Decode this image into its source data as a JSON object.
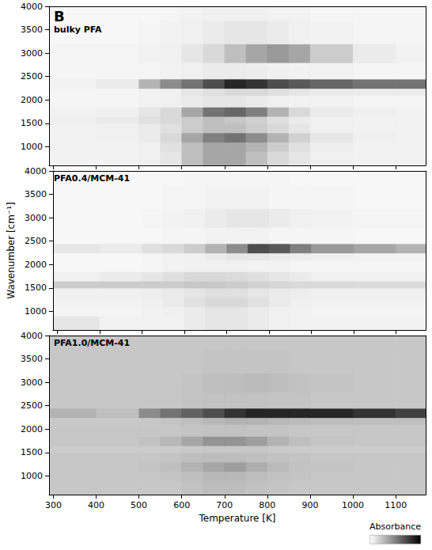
{
  "chart_data": {
    "type": "heatmap",
    "letter": "B",
    "xlabel": "Temperature [K]",
    "ylabel": "Wavenumber [cm⁻¹]",
    "xlim": [
      290,
      1170
    ],
    "xticks": [
      300,
      400,
      500,
      600,
      700,
      800,
      900,
      1000,
      1100
    ],
    "ylim": [
      600,
      4000
    ],
    "yticks": [
      1000,
      1500,
      2000,
      2500,
      3000,
      3500,
      4000
    ],
    "x_bins": [
      290,
      400,
      500,
      550,
      600,
      650,
      700,
      750,
      800,
      850,
      900,
      1000,
      1100,
      1170
    ],
    "y_bins": [
      600,
      900,
      1100,
      1300,
      1500,
      1650,
      1850,
      2100,
      2250,
      2450,
      2800,
      3200,
      3700,
      4000
    ],
    "colorbar": {
      "label": "Absorbance",
      "range": [
        0,
        1
      ],
      "colors": [
        "#ffffff",
        "#000000"
      ]
    },
    "panels": [
      {
        "title": "bulky PFA",
        "values": [
          [
            0.05,
            0.05,
            0.06,
            0.1,
            0.25,
            0.35,
            0.35,
            0.25,
            0.15,
            0.1,
            0.06,
            0.05,
            0.05
          ],
          [
            0.05,
            0.05,
            0.06,
            0.12,
            0.25,
            0.35,
            0.35,
            0.3,
            0.2,
            0.12,
            0.07,
            0.05,
            0.05
          ],
          [
            0.05,
            0.06,
            0.08,
            0.15,
            0.35,
            0.5,
            0.55,
            0.45,
            0.3,
            0.18,
            0.1,
            0.06,
            0.05
          ],
          [
            0.05,
            0.06,
            0.08,
            0.12,
            0.2,
            0.25,
            0.25,
            0.2,
            0.15,
            0.1,
            0.06,
            0.05,
            0.05
          ],
          [
            0.06,
            0.08,
            0.12,
            0.15,
            0.2,
            0.25,
            0.22,
            0.18,
            0.12,
            0.08,
            0.06,
            0.05,
            0.05
          ],
          [
            0.05,
            0.06,
            0.1,
            0.15,
            0.35,
            0.55,
            0.6,
            0.5,
            0.3,
            0.15,
            0.08,
            0.06,
            0.05
          ],
          [
            0.04,
            0.04,
            0.05,
            0.06,
            0.08,
            0.1,
            0.1,
            0.08,
            0.06,
            0.05,
            0.05,
            0.04,
            0.04
          ],
          [
            0.04,
            0.04,
            0.05,
            0.06,
            0.1,
            0.12,
            0.15,
            0.15,
            0.12,
            0.1,
            0.08,
            0.08,
            0.08
          ],
          [
            0.05,
            0.08,
            0.3,
            0.45,
            0.55,
            0.7,
            0.85,
            0.8,
            0.7,
            0.65,
            0.6,
            0.55,
            0.55
          ],
          [
            0.04,
            0.04,
            0.04,
            0.05,
            0.06,
            0.08,
            0.08,
            0.07,
            0.06,
            0.05,
            0.05,
            0.04,
            0.04
          ],
          [
            0.04,
            0.04,
            0.05,
            0.06,
            0.1,
            0.15,
            0.25,
            0.35,
            0.4,
            0.35,
            0.2,
            0.08,
            0.05
          ],
          [
            0.03,
            0.03,
            0.04,
            0.05,
            0.06,
            0.08,
            0.1,
            0.1,
            0.08,
            0.06,
            0.05,
            0.04,
            0.04
          ],
          [
            0.03,
            0.03,
            0.03,
            0.04,
            0.05,
            0.06,
            0.06,
            0.06,
            0.05,
            0.05,
            0.04,
            0.04,
            0.04
          ]
        ]
      },
      {
        "title": "PFA0.4/MCM-41",
        "values": [
          [
            0.1,
            0.05,
            0.05,
            0.05,
            0.08,
            0.1,
            0.1,
            0.08,
            0.06,
            0.05,
            0.05,
            0.05,
            0.05
          ],
          [
            0.04,
            0.04,
            0.05,
            0.06,
            0.08,
            0.1,
            0.1,
            0.08,
            0.06,
            0.05,
            0.04,
            0.04,
            0.04
          ],
          [
            0.05,
            0.05,
            0.06,
            0.08,
            0.12,
            0.15,
            0.15,
            0.12,
            0.08,
            0.06,
            0.05,
            0.05,
            0.05
          ],
          [
            0.06,
            0.06,
            0.07,
            0.08,
            0.1,
            0.12,
            0.12,
            0.1,
            0.08,
            0.07,
            0.06,
            0.06,
            0.06
          ],
          [
            0.2,
            0.2,
            0.2,
            0.2,
            0.22,
            0.22,
            0.2,
            0.18,
            0.16,
            0.15,
            0.15,
            0.14,
            0.14
          ],
          [
            0.06,
            0.08,
            0.1,
            0.12,
            0.15,
            0.15,
            0.14,
            0.12,
            0.1,
            0.08,
            0.06,
            0.06,
            0.06
          ],
          [
            0.03,
            0.03,
            0.04,
            0.05,
            0.06,
            0.06,
            0.06,
            0.05,
            0.05,
            0.04,
            0.04,
            0.04,
            0.04
          ],
          [
            0.03,
            0.03,
            0.04,
            0.05,
            0.06,
            0.08,
            0.1,
            0.1,
            0.08,
            0.07,
            0.06,
            0.05,
            0.05
          ],
          [
            0.1,
            0.08,
            0.12,
            0.15,
            0.2,
            0.3,
            0.45,
            0.7,
            0.65,
            0.5,
            0.4,
            0.35,
            0.3
          ],
          [
            0.03,
            0.03,
            0.03,
            0.04,
            0.04,
            0.05,
            0.05,
            0.05,
            0.04,
            0.04,
            0.04,
            0.03,
            0.03
          ],
          [
            0.03,
            0.03,
            0.04,
            0.05,
            0.06,
            0.08,
            0.1,
            0.1,
            0.08,
            0.06,
            0.05,
            0.04,
            0.04
          ],
          [
            0.03,
            0.03,
            0.03,
            0.04,
            0.04,
            0.05,
            0.05,
            0.05,
            0.04,
            0.04,
            0.04,
            0.03,
            0.03
          ],
          [
            0.03,
            0.03,
            0.03,
            0.03,
            0.04,
            0.04,
            0.04,
            0.04,
            0.04,
            0.03,
            0.03,
            0.03,
            0.03
          ]
        ]
      },
      {
        "title": "PFA1.0/MCM-41",
        "values": [
          [
            0.22,
            0.22,
            0.22,
            0.22,
            0.24,
            0.26,
            0.26,
            0.24,
            0.23,
            0.22,
            0.22,
            0.22,
            0.22
          ],
          [
            0.22,
            0.22,
            0.22,
            0.23,
            0.25,
            0.28,
            0.28,
            0.26,
            0.24,
            0.23,
            0.22,
            0.22,
            0.22
          ],
          [
            0.22,
            0.22,
            0.23,
            0.25,
            0.3,
            0.35,
            0.38,
            0.32,
            0.27,
            0.24,
            0.23,
            0.22,
            0.22
          ],
          [
            0.22,
            0.22,
            0.22,
            0.23,
            0.25,
            0.26,
            0.26,
            0.25,
            0.24,
            0.23,
            0.22,
            0.22,
            0.22
          ],
          [
            0.2,
            0.2,
            0.2,
            0.2,
            0.21,
            0.22,
            0.22,
            0.22,
            0.21,
            0.2,
            0.2,
            0.2,
            0.2
          ],
          [
            0.22,
            0.22,
            0.24,
            0.28,
            0.35,
            0.42,
            0.42,
            0.38,
            0.3,
            0.25,
            0.23,
            0.22,
            0.22
          ],
          [
            0.22,
            0.22,
            0.22,
            0.22,
            0.23,
            0.24,
            0.24,
            0.23,
            0.23,
            0.22,
            0.22,
            0.22,
            0.22
          ],
          [
            0.21,
            0.21,
            0.22,
            0.23,
            0.25,
            0.28,
            0.3,
            0.3,
            0.28,
            0.27,
            0.26,
            0.25,
            0.25
          ],
          [
            0.3,
            0.25,
            0.45,
            0.55,
            0.62,
            0.7,
            0.8,
            0.85,
            0.85,
            0.85,
            0.85,
            0.8,
            0.75
          ],
          [
            0.22,
            0.22,
            0.22,
            0.22,
            0.23,
            0.24,
            0.24,
            0.24,
            0.23,
            0.23,
            0.22,
            0.22,
            0.22
          ],
          [
            0.22,
            0.22,
            0.22,
            0.22,
            0.23,
            0.25,
            0.26,
            0.27,
            0.26,
            0.24,
            0.23,
            0.22,
            0.22
          ],
          [
            0.22,
            0.22,
            0.22,
            0.22,
            0.22,
            0.23,
            0.23,
            0.23,
            0.23,
            0.22,
            0.22,
            0.22,
            0.22
          ],
          [
            0.22,
            0.22,
            0.22,
            0.22,
            0.22,
            0.22,
            0.22,
            0.22,
            0.22,
            0.22,
            0.22,
            0.22,
            0.22
          ]
        ]
      }
    ]
  }
}
